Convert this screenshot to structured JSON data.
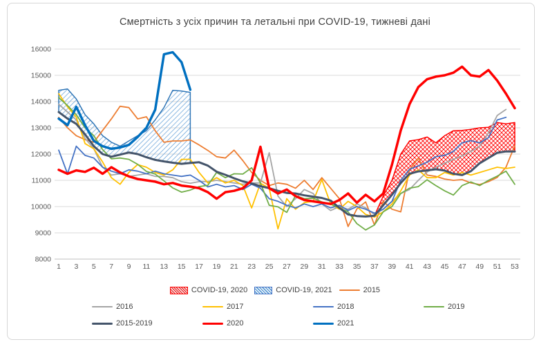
{
  "chart_data": {
    "type": "line",
    "title": "Смертність з усіх причин та летальні при COVID-19, тижневі дані",
    "xlabel": "",
    "ylabel": "",
    "x": "week of year, 1..53",
    "axes": {
      "y_min": 8000,
      "y_max": 16000,
      "grid": true,
      "y_ticks": [
        16000,
        15000,
        14000,
        13000,
        12000,
        11000,
        10000,
        9000,
        8000
      ],
      "x_ticks": [
        1,
        3,
        5,
        7,
        9,
        11,
        13,
        15,
        17,
        19,
        21,
        23,
        25,
        27,
        29,
        31,
        33,
        35,
        37,
        39,
        41,
        43,
        45,
        47,
        49,
        51,
        53
      ]
    },
    "series": [
      {
        "name": "2015",
        "color": "#ED7D31",
        "width": 1.8,
        "values": [
          13400,
          13000,
          12700,
          12550,
          12450,
          12900,
          13340,
          13820,
          13770,
          13340,
          13420,
          12890,
          12450,
          12500,
          12500,
          12540,
          12350,
          12140,
          11900,
          11850,
          12150,
          11750,
          11300,
          11000,
          10800,
          10900,
          10850,
          10700,
          11000,
          10650,
          11100,
          10700,
          10300,
          9240,
          9910,
          10180,
          9300,
          10200,
          9900,
          9800,
          11400,
          11850,
          11200,
          11150,
          11050,
          11000,
          11030,
          10900,
          10840,
          10950,
          11110,
          11500,
          12320
        ]
      },
      {
        "name": "2016",
        "color": "#A5A5A5",
        "width": 1.8,
        "values": [
          13900,
          13600,
          13300,
          12600,
          12200,
          11500,
          11200,
          11250,
          11150,
          11200,
          11250,
          11150,
          11150,
          11100,
          10950,
          10890,
          10950,
          10950,
          11000,
          10950,
          10900,
          10850,
          10900,
          10900,
          12050,
          10400,
          10000,
          10300,
          10650,
          10500,
          10100,
          9850,
          10000,
          9900,
          10100,
          9950,
          9700,
          9900,
          10200,
          10500,
          10650,
          11000,
          11320,
          11500,
          11650,
          11800,
          11930,
          12100,
          12300,
          12810,
          13470,
          13700,
          null
        ]
      },
      {
        "name": "2017",
        "color": "#FFC000",
        "width": 1.8,
        "values": [
          14300,
          13800,
          13400,
          12400,
          12200,
          11700,
          11100,
          10850,
          11300,
          11600,
          11500,
          11300,
          11200,
          11400,
          11800,
          11800,
          11300,
          10900,
          11100,
          10900,
          11000,
          10800,
          9950,
          10890,
          10700,
          9150,
          10300,
          9900,
          10150,
          10200,
          11030,
          10100,
          9900,
          10200,
          10000,
          9700,
          9600,
          9800,
          10100,
          10600,
          11200,
          11400,
          11100,
          11100,
          11300,
          11200,
          11300,
          11200,
          11300,
          11400,
          11500,
          11450,
          11500
        ]
      },
      {
        "name": "2018",
        "color": "#4472C4",
        "width": 1.8,
        "values": [
          12150,
          11250,
          12300,
          11950,
          11850,
          11500,
          11350,
          11250,
          11400,
          11350,
          11250,
          11350,
          11250,
          11200,
          11150,
          11200,
          11000,
          10750,
          10850,
          10750,
          10800,
          10650,
          10850,
          10700,
          10300,
          10200,
          10050,
          9950,
          10100,
          10000,
          10100,
          9950,
          10050,
          9850,
          10000,
          9900,
          9750,
          9900,
          10200,
          11000,
          11420,
          11550,
          11690,
          11900,
          11950,
          12100,
          12430,
          12510,
          12430,
          12620,
          13300,
          13400,
          null
        ]
      },
      {
        "name": "2019",
        "color": "#70AD47",
        "width": 1.8,
        "values": [
          14150,
          13850,
          13500,
          13000,
          12700,
          12170,
          11820,
          11850,
          11800,
          11610,
          11340,
          11240,
          10980,
          10710,
          10550,
          10630,
          10760,
          10810,
          11300,
          11100,
          11250,
          11240,
          11480,
          10900,
          10050,
          9990,
          9780,
          10420,
          10300,
          10320,
          10180,
          10100,
          9950,
          9800,
          9350,
          9110,
          9300,
          9800,
          10000,
          10500,
          10700,
          10760,
          11020,
          10800,
          10600,
          10440,
          10800,
          10940,
          10800,
          11000,
          11160,
          11350,
          10850
        ]
      },
      {
        "name": "2015-2019",
        "color": "#44546A",
        "width": 3,
        "values": [
          13600,
          13350,
          13150,
          12750,
          12300,
          12000,
          11900,
          11980,
          12060,
          12000,
          11880,
          11780,
          11720,
          11670,
          11630,
          11660,
          11690,
          11560,
          11330,
          11210,
          11080,
          10960,
          10880,
          10780,
          10700,
          10600,
          10520,
          10500,
          10430,
          10380,
          10330,
          10230,
          9950,
          9700,
          9640,
          9620,
          9650,
          10050,
          10450,
          10900,
          11250,
          11340,
          11380,
          11420,
          11370,
          11250,
          11200,
          11350,
          11650,
          11850,
          12050,
          12100,
          12100
        ]
      },
      {
        "name": "2020",
        "color": "#FF0000",
        "width": 3.5,
        "values": [
          11400,
          11250,
          11380,
          11320,
          11480,
          11250,
          11500,
          11300,
          11150,
          11050,
          11000,
          10950,
          10850,
          10900,
          10800,
          10760,
          10700,
          10550,
          10300,
          10550,
          10600,
          10700,
          11000,
          12280,
          10700,
          10500,
          10650,
          10400,
          10250,
          10200,
          10150,
          10100,
          10250,
          10500,
          10150,
          10450,
          10200,
          10500,
          11600,
          12900,
          13900,
          14550,
          14850,
          14950,
          15000,
          15100,
          15330,
          15000,
          14950,
          15200,
          14800,
          14300,
          13750
        ]
      },
      {
        "name": "2021",
        "color": "#0070C0",
        "width": 3.5,
        "values": [
          13350,
          13100,
          13800,
          13100,
          12500,
          12300,
          12200,
          12250,
          12350,
          12650,
          13000,
          13690,
          15800,
          15880,
          15500,
          14450,
          null,
          null,
          null,
          null,
          null,
          null,
          null,
          null,
          null,
          null,
          null,
          null,
          null,
          null,
          null,
          null,
          null,
          null,
          null,
          null,
          null,
          null,
          null,
          null,
          null,
          null,
          null,
          null,
          null,
          null,
          null,
          null,
          null,
          null,
          null,
          null,
          null
        ]
      }
    ],
    "areas": [
      {
        "name": "COVID-19, 2021",
        "pattern": "hatchBlue",
        "stroke": "#2E75B6",
        "lower": "2015-2019",
        "upper": [
          14430,
          14480,
          14100,
          13500,
          13150,
          12700,
          12450,
          12300,
          12500,
          12700,
          12890,
          13300,
          13770,
          14430,
          14400,
          14350,
          null,
          null,
          null,
          null,
          null,
          null,
          null,
          null,
          null,
          null,
          null,
          null,
          null,
          null,
          null,
          null,
          null,
          null,
          null,
          null,
          null,
          null,
          null,
          null,
          null,
          null,
          null,
          null,
          null,
          null,
          null,
          null,
          null,
          null,
          null,
          null,
          null
        ]
      },
      {
        "name": "COVID-19, 2020",
        "pattern": "hatchRed",
        "stroke": "#FF0000",
        "lower": "2015-2019",
        "upper": [
          null,
          null,
          null,
          null,
          null,
          null,
          null,
          null,
          null,
          null,
          null,
          null,
          null,
          null,
          null,
          null,
          null,
          null,
          null,
          null,
          null,
          null,
          null,
          null,
          null,
          null,
          null,
          null,
          null,
          null,
          null,
          null,
          null,
          null,
          null,
          null,
          9650,
          10400,
          11000,
          12000,
          12500,
          12550,
          12650,
          12430,
          12700,
          12890,
          12900,
          12940,
          13000,
          13020,
          13200,
          13150,
          13200
        ]
      }
    ],
    "legend": {
      "rows": [
        [
          {
            "label": "COVID-19, 2020",
            "type": "hatch",
            "hatch": "red"
          },
          {
            "label": "COVID-19, 2021",
            "type": "hatch",
            "hatch": "blue"
          },
          {
            "label": "2015",
            "type": "line",
            "color": "#ED7D31",
            "thick": false
          }
        ],
        [
          {
            "label": "2016",
            "type": "line",
            "color": "#A5A5A5",
            "thick": false
          },
          {
            "label": "2017",
            "type": "line",
            "color": "#FFC000",
            "thick": false
          },
          {
            "label": "2018",
            "type": "line",
            "color": "#4472C4",
            "thick": false
          },
          {
            "label": "2019",
            "type": "line",
            "color": "#70AD47",
            "thick": false
          }
        ],
        [
          {
            "label": "2015-2019",
            "type": "line",
            "color": "#44546A",
            "thick": true
          },
          {
            "label": "2020",
            "type": "line",
            "color": "#FF0000",
            "thick": true
          },
          {
            "label": "2021",
            "type": "line",
            "color": "#0070C0",
            "thick": true
          }
        ]
      ]
    },
    "colors": {
      "grid": "#D9D9D9",
      "axis_line": "#BFBFBF",
      "tick_text": "#595959",
      "title_text": "#404040"
    }
  }
}
